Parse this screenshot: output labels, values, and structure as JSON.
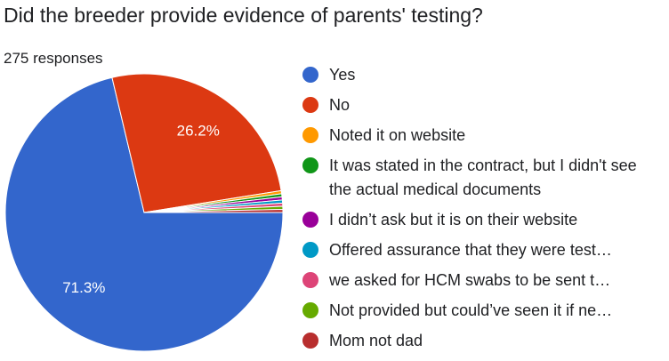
{
  "chart_data": {
    "type": "pie",
    "title": "Did the breeder provide evidence of parents' testing?",
    "subtitle": "275 responses",
    "categories": [
      "Yes",
      "No",
      "Noted it on website",
      "It was stated in the contract, but I didn't see the actual medical documents",
      "I didn’t ask but it is on their website",
      "Offered assurance that they were test…",
      "we asked for HCM swabs to be sent t…",
      "Not provided but could’ve seen it if ne…",
      "Mom not dad"
    ],
    "values": [
      71.3,
      26.2,
      0.36,
      0.36,
      0.36,
      0.36,
      0.36,
      0.36,
      0.36
    ],
    "value_labels": [
      "71.3%",
      "26.2%",
      null,
      null,
      null,
      null,
      null,
      null,
      null
    ],
    "colors": [
      "#3366cc",
      "#dc3912",
      "#ff9900",
      "#109618",
      "#990099",
      "#0099c6",
      "#dd4477",
      "#66aa00",
      "#b82e2e"
    ]
  }
}
